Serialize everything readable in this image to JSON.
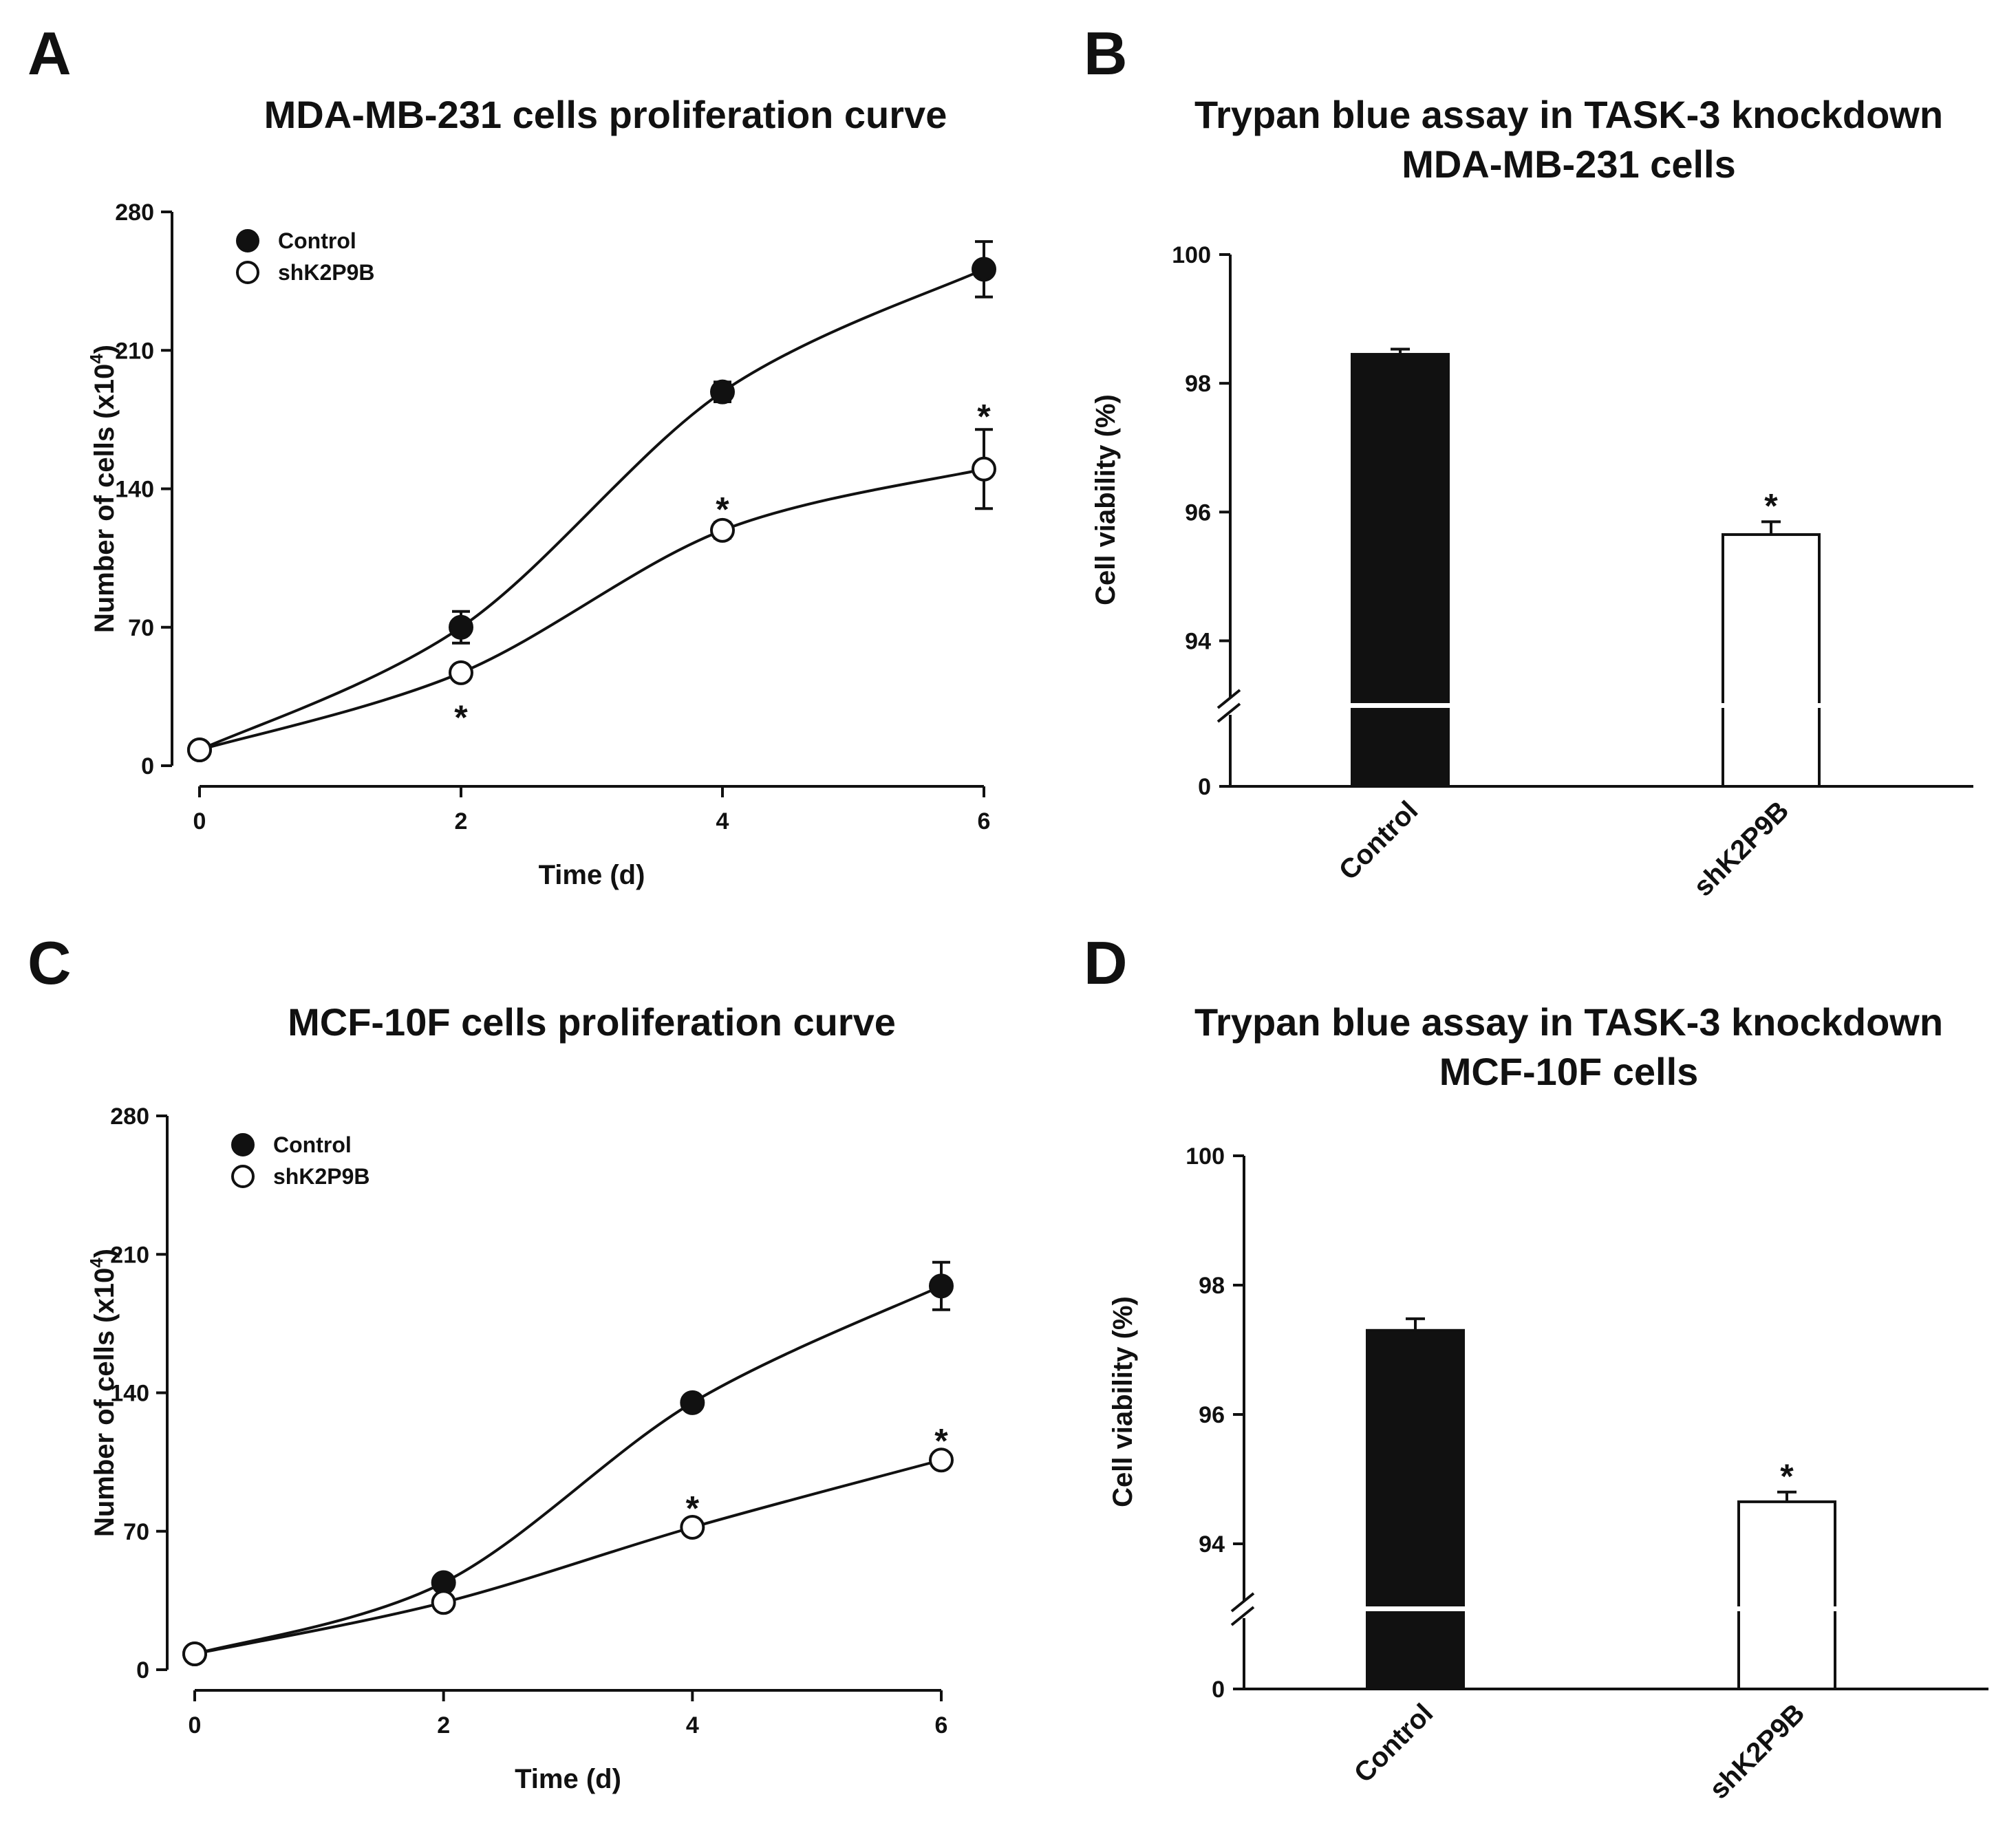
{
  "chart_data": [
    {
      "panel": "A",
      "type": "line",
      "title": [
        "MDA-MB-231 cells proliferation curve"
      ],
      "xlabel": "Time (d)",
      "ylabel": "Number of cells (x10",
      "ylabel_sup": "4",
      "ylabel_close": ")",
      "x": [
        0,
        2,
        4,
        6
      ],
      "xlim": [
        0,
        6
      ],
      "ylim": [
        0,
        280
      ],
      "xticks": [
        "0",
        "2",
        "4",
        "6"
      ],
      "yticks": [
        "0",
        "70",
        "140",
        "210",
        "280"
      ],
      "legend": "top-left",
      "series": [
        {
          "name": "Control",
          "marker": "filled-circle",
          "values": [
            8,
            70,
            189,
            251
          ],
          "errors": [
            0,
            8,
            5,
            14
          ],
          "significance": [
            "",
            "",
            "",
            ""
          ]
        },
        {
          "name": "shK2P9B",
          "marker": "open-circle",
          "values": [
            8,
            47,
            119,
            150
          ],
          "errors": [
            0,
            3,
            4,
            20
          ],
          "significance": [
            "",
            "*",
            "*",
            "*"
          ]
        }
      ]
    },
    {
      "panel": "B",
      "type": "bar",
      "title": [
        "Trypan blue assay in TASK-3 knockdown",
        "MDA-MB-231 cells"
      ],
      "ylabel": "Cell viability (%)",
      "categories": [
        "Control",
        "shK2P9B"
      ],
      "values": [
        98.45,
        95.65
      ],
      "errors": [
        0.08,
        0.2
      ],
      "significance": [
        "",
        "*"
      ],
      "ylim": [
        93,
        100
      ],
      "yticks": [
        "94",
        "96",
        "98",
        "100"
      ],
      "ybreak_label": "0",
      "bar_colors": [
        "#111111",
        "#ffffff"
      ]
    },
    {
      "panel": "C",
      "type": "line",
      "title": [
        "MCF-10F cells proliferation curve"
      ],
      "xlabel": "Time (d)",
      "ylabel": "Number of cells (x10",
      "ylabel_sup": "4",
      "ylabel_close": ")",
      "x": [
        0,
        2,
        4,
        6
      ],
      "xlim": [
        0,
        6
      ],
      "ylim": [
        0,
        280
      ],
      "xticks": [
        "0",
        "2",
        "4",
        "6"
      ],
      "yticks": [
        "0",
        "70",
        "140",
        "210",
        "280"
      ],
      "legend": "top-left",
      "series": [
        {
          "name": "Control",
          "marker": "filled-circle",
          "values": [
            8,
            44,
            135,
            194
          ],
          "errors": [
            0,
            3,
            3,
            12
          ],
          "significance": [
            "",
            "",
            "",
            ""
          ]
        },
        {
          "name": "shK2P9B",
          "marker": "open-circle",
          "values": [
            8,
            34,
            72,
            106
          ],
          "errors": [
            0,
            2,
            3,
            3
          ],
          "significance": [
            "",
            "",
            "*",
            "*"
          ]
        }
      ]
    },
    {
      "panel": "D",
      "type": "bar",
      "title": [
        "Trypan blue assay in TASK-3 knockdown",
        "MCF-10F cells"
      ],
      "ylabel": "Cell viability (%)",
      "categories": [
        "Control",
        "shK2P9B"
      ],
      "values": [
        97.3,
        94.65
      ],
      "errors": [
        0.18,
        0.15
      ],
      "significance": [
        "",
        "*"
      ],
      "ylim": [
        93,
        100
      ],
      "yticks": [
        "94",
        "96",
        "98",
        "100"
      ],
      "ybreak_label": "0",
      "bar_colors": [
        "#111111",
        "#ffffff"
      ]
    }
  ]
}
